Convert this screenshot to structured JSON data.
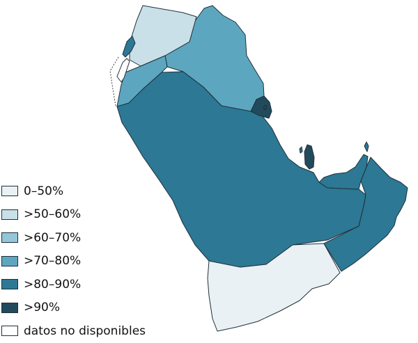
{
  "colors": {
    "c0_50": "#e9f1f5",
    "c50_60": "#c9e0e9",
    "c60_70": "#93c6d9",
    "c70_80": "#5da6c0",
    "c80_90": "#2d7894",
    "c90": "#214b5c",
    "na": "#ffffff"
  },
  "legend": [
    {
      "label": "0–50%",
      "color": "#e9f1f5"
    },
    {
      "label": ">50–60%",
      "color": "#c9e0e9"
    },
    {
      "label": ">60–70%",
      "color": "#93c6d9"
    },
    {
      "label": ">70–80%",
      "color": "#5da6c0"
    },
    {
      "label": ">80–90%",
      "color": "#2d7894"
    },
    {
      "label": ">90%",
      "color": "#214b5c"
    },
    {
      "label": "datos no disponibles",
      "color": "#ffffff"
    }
  ]
}
